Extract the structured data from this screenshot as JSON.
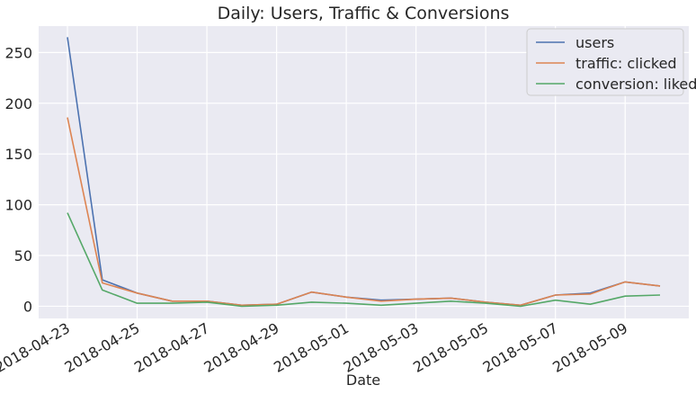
{
  "chart_data": {
    "type": "line",
    "title": "Daily: Users, Traffic & Conversions",
    "xlabel": "Date",
    "ylabel": "",
    "x": [
      "2018-04-23",
      "2018-04-24",
      "2018-04-25",
      "2018-04-26",
      "2018-04-27",
      "2018-04-28",
      "2018-04-29",
      "2018-04-30",
      "2018-05-01",
      "2018-05-02",
      "2018-05-03",
      "2018-05-04",
      "2018-05-05",
      "2018-05-06",
      "2018-05-07",
      "2018-05-08",
      "2018-05-09",
      "2018-05-10"
    ],
    "x_ticks": [
      "2018-04-23",
      "2018-04-25",
      "2018-04-27",
      "2018-04-29",
      "2018-05-01",
      "2018-05-03",
      "2018-05-05",
      "2018-05-07",
      "2018-05-09"
    ],
    "y_ticks": [
      0,
      50,
      100,
      150,
      200,
      250
    ],
    "ylim": [
      -12,
      276
    ],
    "grid": true,
    "legend_position": "top-right",
    "series": [
      {
        "name": "users",
        "color": "#4c72b0",
        "values": [
          265,
          26,
          13,
          5,
          5,
          1,
          2,
          14,
          9,
          6,
          7,
          8,
          4,
          1,
          11,
          13,
          24,
          20
        ]
      },
      {
        "name": "traffic: clicked",
        "color": "#dd8452",
        "values": [
          186,
          23,
          13,
          5,
          5,
          1,
          2,
          14,
          9,
          5,
          7,
          8,
          4,
          1,
          11,
          12,
          24,
          20
        ]
      },
      {
        "name": "conversion: liked",
        "color": "#55a868",
        "values": [
          92,
          16,
          3,
          3,
          4,
          0,
          1,
          4,
          3,
          1,
          3,
          5,
          3,
          0,
          6,
          2,
          10,
          11
        ]
      }
    ]
  }
}
